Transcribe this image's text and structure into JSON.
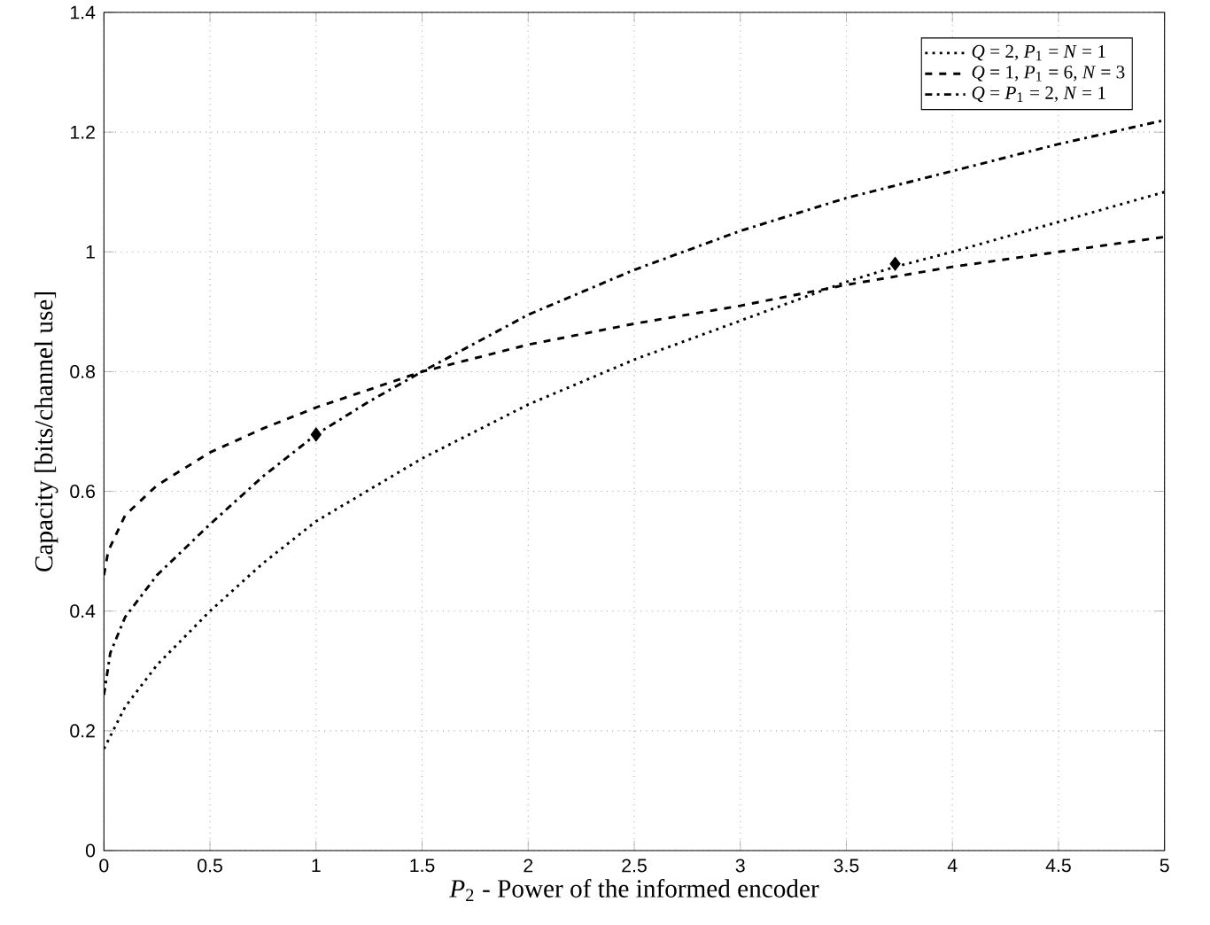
{
  "chart_data": {
    "type": "line",
    "xlabel": "*P*$_{2}$ - Power of the informed encoder",
    "ylabel": "Capacity [bits/channel use]",
    "xlim": [
      0,
      5
    ],
    "ylim": [
      0,
      1.4
    ],
    "xticks": [
      0,
      0.5,
      1,
      1.5,
      2,
      2.5,
      3,
      3.5,
      4,
      4.5,
      5
    ],
    "yticks": [
      0,
      0.2,
      0.4,
      0.6,
      0.8,
      1,
      1.2,
      1.4
    ],
    "grid": true,
    "legend": "top right",
    "series": [
      {
        "name": "*Q* = 2, *P*$_{1}$ = *N* = 1",
        "color": "#000000",
        "line_style": "dotted",
        "x": [
          0,
          0.1,
          0.25,
          0.5,
          0.75,
          1,
          1.5,
          2,
          2.5,
          3,
          3.5,
          3.73,
          4,
          4.5,
          5
        ],
        "values": [
          0.17,
          0.24,
          0.31,
          0.4,
          0.48,
          0.55,
          0.655,
          0.745,
          0.82,
          0.885,
          0.95,
          0.975,
          1.0,
          1.05,
          1.1
        ]
      },
      {
        "name": "*Q* = 1, *P*$_{1}$ = 6, *N* = 3",
        "color": "#000000",
        "line_style": "dashed",
        "x": [
          0,
          0.02,
          0.1,
          0.25,
          0.5,
          0.75,
          1,
          1.5,
          2,
          2.5,
          3,
          3.5,
          4,
          4.5,
          5
        ],
        "values": [
          0.46,
          0.5,
          0.56,
          0.61,
          0.665,
          0.705,
          0.74,
          0.8,
          0.845,
          0.88,
          0.91,
          0.945,
          0.975,
          1.0,
          1.025
        ]
      },
      {
        "name": "*Q* = *P*$_{1}$ = 2, *N* = 1",
        "color": "#000000",
        "line_style": "dashdot",
        "x": [
          0,
          0.03,
          0.1,
          0.25,
          0.5,
          0.75,
          1,
          1.25,
          1.5,
          2,
          2.5,
          3,
          3.5,
          4,
          4.5,
          5
        ],
        "values": [
          0.26,
          0.33,
          0.39,
          0.46,
          0.545,
          0.625,
          0.695,
          0.75,
          0.8,
          0.895,
          0.97,
          1.035,
          1.09,
          1.135,
          1.18,
          1.22
        ]
      },
      {
        "type": "scatter",
        "marker": "diamond",
        "color": "#000000",
        "x": [
          1,
          3.73
        ],
        "values": [
          0.695,
          0.98
        ]
      }
    ]
  }
}
